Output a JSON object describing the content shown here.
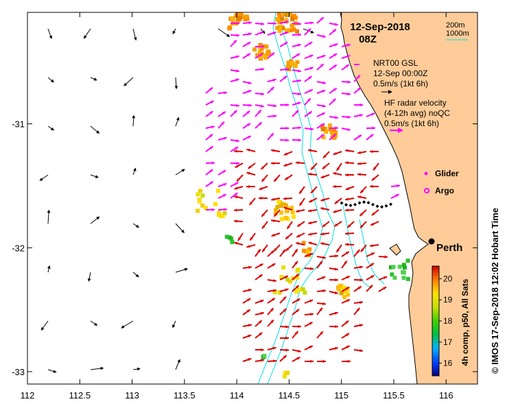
{
  "title": {
    "date": "12-Sep-2018",
    "time": "08Z"
  },
  "axes": {
    "lon_ticks": [
      "112",
      "112.5",
      "113",
      "113.5",
      "114",
      "114.5",
      "115",
      "115.5",
      "116"
    ],
    "lat_ticks": [
      "-31",
      "-32",
      "-33"
    ],
    "lon_range": [
      112,
      116.3
    ],
    "lat_range": [
      -30.1,
      -33.1
    ]
  },
  "legend": {
    "isobath": {
      "label_200": "200m",
      "label_1000": "1000m",
      "color": "#00e0e0"
    },
    "model": {
      "lines": [
        "NRT00 GSL",
        "12-Sep 00:00Z",
        "0.5m/s (1kt 6h)"
      ],
      "arrow_color": "#000000"
    },
    "radar": {
      "lines": [
        "HF radar velocity",
        "(4-12h avg) noQC",
        "0.5m/s (1kt 6h)"
      ],
      "arrow_color": "#ff00ff"
    },
    "glider_label": "Glider",
    "argo_label": "Argo"
  },
  "city": {
    "name": "Perth",
    "lon": 115.86,
    "lat": -31.95
  },
  "colorbar": {
    "ticks": [
      "16",
      "17",
      "18",
      "19",
      "20"
    ],
    "label": "4h comp, p50, All Sats",
    "min": 15.4,
    "max": 20.6
  },
  "credit": "© IMOS 17-Sep-2018 12:02 Hobart Time",
  "colors": {
    "land": "#ffcc99",
    "radar": "#ff00ff",
    "radar_strong": "#dd0000",
    "isobath": "#00e0e0"
  }
}
